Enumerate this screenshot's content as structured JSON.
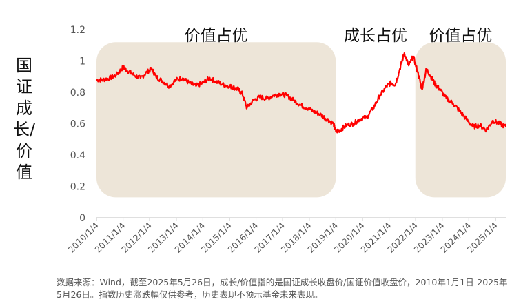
{
  "chart_data": {
    "type": "line",
    "title": "",
    "ylabel": "国证成长/价值",
    "ylim": [
      0,
      1.2
    ],
    "y_ticks": [
      "0",
      "0.2",
      "0.4",
      "0.6",
      "0.8",
      "1",
      "1.2"
    ],
    "x_ticks": [
      "2010/1/4",
      "2011/1/4",
      "2012/1/4",
      "2013/1/4",
      "2014/1/4",
      "2015/1/4",
      "2016/1/4",
      "2017/1/4",
      "2018/1/4",
      "2019/1/4",
      "2020/1/4",
      "2021/1/4",
      "2022/1/4",
      "2023/1/4",
      "2024/1/4",
      "2025/1/4"
    ],
    "x_range": [
      "2010-01-04",
      "2025-05-26"
    ],
    "line_color": "#ff0000",
    "region_color": "#ede5d8",
    "regions": [
      {
        "label": "价值占优",
        "start": "2010-01-04",
        "end": "2019-01-04"
      },
      {
        "label": "成长占优",
        "start": "2019-01-04",
        "end": "2021-12-31"
      },
      {
        "label": "价值占优",
        "start": "2021-12-31",
        "end": "2025-05-26"
      }
    ],
    "series": [
      {
        "points": [
          [
            "2010-01-04",
            0.88
          ],
          [
            "2010-04-01",
            0.88
          ],
          [
            "2010-07-01",
            0.89
          ],
          [
            "2010-10-01",
            0.91
          ],
          [
            "2011-01-04",
            0.96
          ],
          [
            "2011-03-01",
            0.94
          ],
          [
            "2011-06-01",
            0.91
          ],
          [
            "2011-09-01",
            0.89
          ],
          [
            "2011-12-01",
            0.93
          ],
          [
            "2012-02-01",
            0.95
          ],
          [
            "2012-04-01",
            0.9
          ],
          [
            "2012-07-01",
            0.87
          ],
          [
            "2012-10-01",
            0.84
          ],
          [
            "2013-01-04",
            0.88
          ],
          [
            "2013-04-01",
            0.89
          ],
          [
            "2013-07-01",
            0.86
          ],
          [
            "2013-10-01",
            0.84
          ],
          [
            "2014-01-04",
            0.86
          ],
          [
            "2014-04-01",
            0.89
          ],
          [
            "2014-07-01",
            0.87
          ],
          [
            "2014-10-01",
            0.85
          ],
          [
            "2015-01-04",
            0.84
          ],
          [
            "2015-03-01",
            0.83
          ],
          [
            "2015-05-01",
            0.82
          ],
          [
            "2015-07-01",
            0.79
          ],
          [
            "2015-09-01",
            0.7
          ],
          [
            "2015-12-01",
            0.75
          ],
          [
            "2016-03-01",
            0.77
          ],
          [
            "2016-06-01",
            0.76
          ],
          [
            "2016-09-01",
            0.78
          ],
          [
            "2016-12-01",
            0.79
          ],
          [
            "2017-03-01",
            0.78
          ],
          [
            "2017-06-01",
            0.75
          ],
          [
            "2017-09-01",
            0.72
          ],
          [
            "2017-12-01",
            0.7
          ],
          [
            "2018-03-01",
            0.68
          ],
          [
            "2018-06-01",
            0.66
          ],
          [
            "2018-09-01",
            0.63
          ],
          [
            "2018-12-01",
            0.6
          ],
          [
            "2019-01-04",
            0.55
          ],
          [
            "2019-03-01",
            0.56
          ],
          [
            "2019-06-01",
            0.59
          ],
          [
            "2019-09-01",
            0.6
          ],
          [
            "2019-12-01",
            0.63
          ],
          [
            "2020-03-01",
            0.64
          ],
          [
            "2020-06-01",
            0.7
          ],
          [
            "2020-09-01",
            0.78
          ],
          [
            "2020-12-01",
            0.84
          ],
          [
            "2021-02-01",
            0.86
          ],
          [
            "2021-04-01",
            0.85
          ],
          [
            "2021-06-01",
            0.95
          ],
          [
            "2021-08-01",
            1.05
          ],
          [
            "2021-10-01",
            0.97
          ],
          [
            "2021-12-01",
            1.03
          ],
          [
            "2022-02-01",
            0.93
          ],
          [
            "2022-04-01",
            0.82
          ],
          [
            "2022-06-01",
            0.95
          ],
          [
            "2022-08-01",
            0.9
          ],
          [
            "2022-10-01",
            0.85
          ],
          [
            "2022-12-01",
            0.82
          ],
          [
            "2023-03-01",
            0.76
          ],
          [
            "2023-06-01",
            0.73
          ],
          [
            "2023-09-01",
            0.68
          ],
          [
            "2023-12-01",
            0.63
          ],
          [
            "2024-03-01",
            0.58
          ],
          [
            "2024-06-01",
            0.59
          ],
          [
            "2024-09-01",
            0.56
          ],
          [
            "2024-12-01",
            0.62
          ],
          [
            "2025-03-01",
            0.6
          ],
          [
            "2025-05-26",
            0.58
          ]
        ]
      }
    ]
  },
  "footnote": "数据来源：Wind，截至2025年5月26日，成长/价值指的是国证成长收盘价/国证价值收盘价，2010年1月1日-2025年5月26日。指数历史涨跌幅仅供参考，历史表现不预示基金未来表现。"
}
